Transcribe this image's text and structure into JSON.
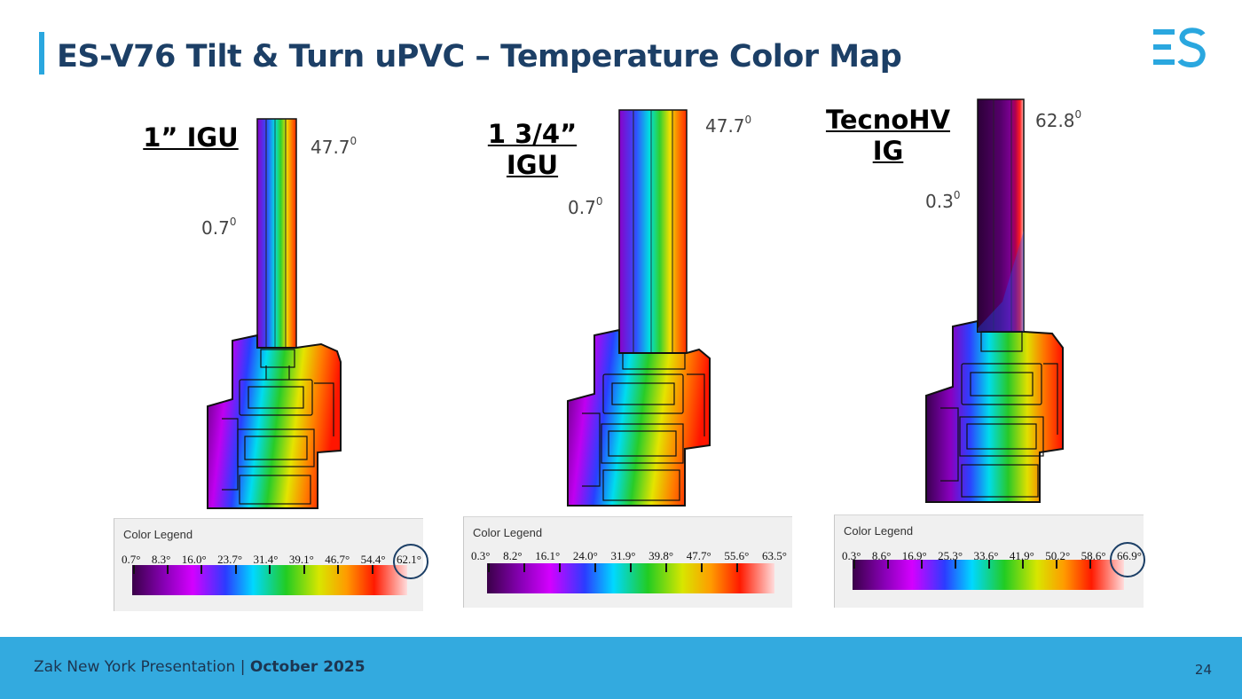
{
  "title": "ES-V76 Tilt & Turn uPVC – Temperature Color Map",
  "logo_text": "ES",
  "panels": [
    {
      "label": "1” IGU",
      "temp_high": "47.7",
      "temp_low": "0.7",
      "degree_mark": "0",
      "legend": {
        "title": "Color Legend",
        "ticks": [
          "0.7°",
          "8.3°",
          "16.0°",
          "23.7°",
          "31.4°",
          "39.1°",
          "46.7°",
          "54.4°",
          "62.1°"
        ],
        "circled": "62.1°"
      }
    },
    {
      "label": "1 3/4” IGU",
      "temp_high": "47.7",
      "temp_low": "0.7",
      "degree_mark": "0",
      "legend": {
        "title": "Color Legend",
        "ticks": [
          "0.3°",
          "8.2°",
          "16.1°",
          "24.0°",
          "31.9°",
          "39.8°",
          "47.7°",
          "55.6°",
          "63.5°"
        ]
      }
    },
    {
      "label": "TecnoHVIG",
      "temp_high": "62.8",
      "temp_low": "0.3",
      "degree_mark": "0",
      "legend": {
        "title": "Color Legend",
        "ticks": [
          "0.3°",
          "8.6°",
          "16.9°",
          "25.3°",
          "33.6°",
          "41.9°",
          "50.2°",
          "58.6°",
          "66.9°"
        ],
        "circled": "66.9°"
      }
    }
  ],
  "colors": {
    "title": "#1c3f66",
    "accent": "#2aa7df",
    "footer_bg": "#33aadf",
    "circle": "#1c3f66"
  },
  "footer": {
    "presentation": "Zak New York Presentation |",
    "date": "October 2025",
    "page_number": "24"
  }
}
